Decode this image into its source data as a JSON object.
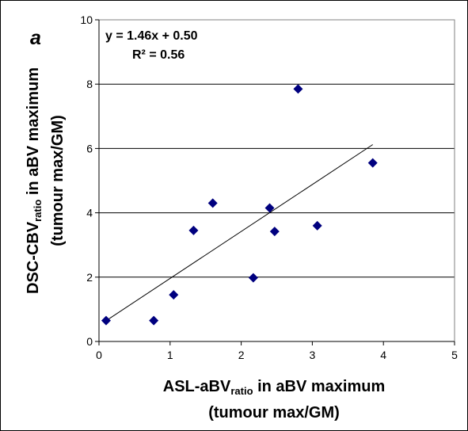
{
  "panel_label": "a",
  "chart_data": {
    "type": "scatter",
    "points": [
      {
        "x": 0.1,
        "y": 0.65
      },
      {
        "x": 0.77,
        "y": 0.65
      },
      {
        "x": 1.05,
        "y": 1.45
      },
      {
        "x": 1.33,
        "y": 3.45
      },
      {
        "x": 1.6,
        "y": 4.3
      },
      {
        "x": 2.17,
        "y": 1.98
      },
      {
        "x": 2.4,
        "y": 4.15
      },
      {
        "x": 2.47,
        "y": 3.42
      },
      {
        "x": 2.8,
        "y": 7.85
      },
      {
        "x": 3.07,
        "y": 3.6
      },
      {
        "x": 3.85,
        "y": 5.55
      }
    ],
    "trendline": {
      "slope": 1.46,
      "intercept": 0.5,
      "x_range": [
        0.1,
        3.85
      ]
    },
    "equation": "y = 1.46x + 0.50",
    "r_squared": "R² = 0.56",
    "xlim": [
      0,
      5
    ],
    "ylim": [
      0,
      10
    ],
    "xticks": [
      "0",
      "1",
      "2",
      "3",
      "4",
      "5"
    ],
    "yticks": [
      "0",
      "2",
      "4",
      "6",
      "8",
      "10"
    ],
    "xlabel": {
      "line1_main": "ASL-aBV",
      "line1_sub": "ratio",
      "line1_rest": " in aBV maximum",
      "line2": "(tumour max/GM)"
    },
    "ylabel": {
      "line1_main": "DSC-CBV",
      "line1_sub": "ratio",
      "line1_rest": " in aBV maximum",
      "line2": "(tumour max/GM)"
    },
    "grid": "horizontal",
    "marker_color": "#00007f"
  }
}
